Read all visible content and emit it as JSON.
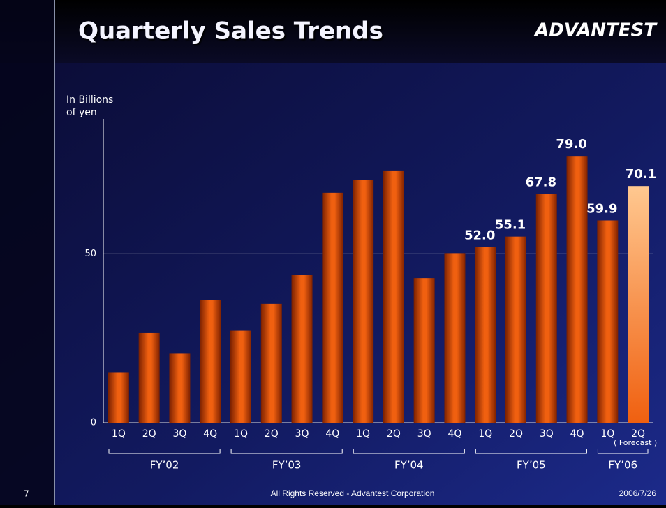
{
  "header": {
    "title": "Quarterly Sales Trends",
    "logo": "ADVANTEST"
  },
  "chart_data": {
    "type": "bar",
    "ylabel": [
      "In Billions",
      "of yen"
    ],
    "groups": [
      {
        "label": "FY’02",
        "categories": [
          "1Q",
          "2Q",
          "3Q",
          "4Q"
        ]
      },
      {
        "label": "FY’03",
        "categories": [
          "1Q",
          "2Q",
          "3Q",
          "4Q"
        ]
      },
      {
        "label": "FY’04",
        "categories": [
          "1Q",
          "2Q",
          "3Q",
          "4Q"
        ]
      },
      {
        "label": "FY’05",
        "categories": [
          "1Q",
          "2Q",
          "3Q",
          "4Q"
        ]
      },
      {
        "label": "FY’06",
        "categories": [
          "1Q",
          "2Q"
        ]
      }
    ],
    "values": [
      14.8,
      26.7,
      20.6,
      36.4,
      27.4,
      35.2,
      43.8,
      68.1,
      72.0,
      74.5,
      42.8,
      50.2,
      52.0,
      55.1,
      67.8,
      79.0,
      59.9,
      70.1
    ],
    "value_labels": [
      null,
      null,
      null,
      null,
      null,
      null,
      null,
      null,
      null,
      null,
      null,
      null,
      "52.0",
      "55.1",
      "67.8",
      "79.0",
      "59.9",
      "70.1"
    ],
    "color": "#f06010",
    "forecast": {
      "label": "( Forecast )",
      "color": "#ffc890"
    },
    "ylim": [
      0,
      90
    ],
    "yticks": [
      0,
      50
    ],
    "grid": true
  },
  "footer": {
    "page": "7",
    "copyright": "All Rights Reserved - Advantest Corporation",
    "date": "2006/7/26"
  }
}
